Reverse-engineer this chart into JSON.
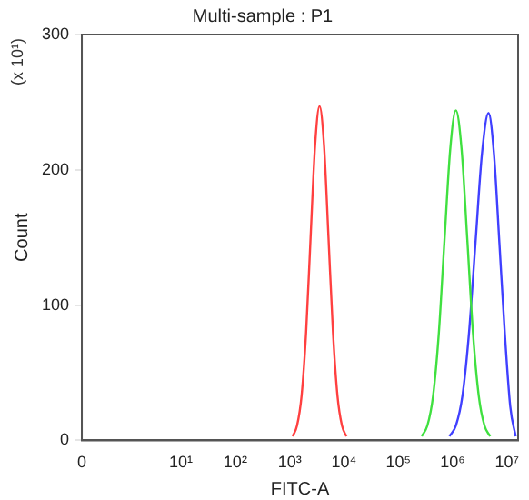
{
  "chart_data": {
    "type": "line",
    "title": "Multi-sample : P1",
    "xlabel": "FITC-A",
    "ylabel": "Count",
    "annotations": [
      "(x 10¹)"
    ],
    "log": "x",
    "grid": false,
    "legend": false,
    "marker": "none",
    "line_style": "solid",
    "xlim": [
      0.15,
      16000000
    ],
    "xticks": [
      {
        "value": 0.15,
        "label": "0"
      },
      {
        "value": 10,
        "label": "10¹"
      },
      {
        "value": 100,
        "label": "10²"
      },
      {
        "value": 1000,
        "label": "10³"
      },
      {
        "value": 10000,
        "label": "10⁴"
      },
      {
        "value": 100000,
        "label": "10⁵"
      },
      {
        "value": 1000000,
        "label": "10⁶"
      },
      {
        "value": 10000000,
        "label": "10⁷"
      }
    ],
    "ylim": [
      0,
      300
    ],
    "yticks": [
      0,
      100,
      200,
      300
    ],
    "series": [
      {
        "color": "#ff4040",
        "x": [
          1140,
          1370,
          1660,
          2010,
          2430,
          2940,
          3550,
          4300,
          5190,
          6280,
          7590,
          9180,
          11100
        ],
        "values": [
          3,
          11,
          33,
          80,
          150,
          218,
          247,
          218,
          150,
          80,
          33,
          11,
          3
        ]
      },
      {
        "color": "#40e040",
        "x": [
          269000,
          343000,
          437000,
          556000,
          708000,
          902000,
          1148000,
          1462000,
          1862000,
          2371000,
          3020000,
          3846000,
          4898000
        ],
        "values": [
          3,
          11,
          33,
          79,
          148,
          215,
          244,
          215,
          148,
          79,
          33,
          11,
          3
        ]
      },
      {
        "color": "#4040ff",
        "x": [
          871000,
          1148000,
          1514000,
          1995000,
          2630000,
          3467000,
          4571000,
          5754000,
          7244000,
          9120000,
          11480000,
          14450000
        ],
        "values": [
          3,
          11,
          33,
          79,
          146,
          212,
          242,
          212,
          146,
          79,
          25,
          3
        ]
      }
    ]
  }
}
